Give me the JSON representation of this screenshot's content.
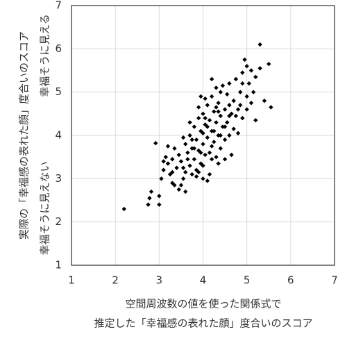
{
  "chart_data": {
    "type": "scatter",
    "xlabel": [
      "空間周波数の値を使った関係式で",
      "推定した「幸福感の表れた顔」度合いのスコア"
    ],
    "ylabel": "実際の「幸福感の表れた顔」度合いのスコア",
    "y_annotation_low": "幸福そうに見えない",
    "y_annotation_high": "幸福そうに見える",
    "xlim": [
      1,
      7
    ],
    "ylim": [
      1,
      7
    ],
    "xticks": [
      1,
      2,
      3,
      4,
      5,
      6,
      7
    ],
    "yticks": [
      1,
      2,
      3,
      4,
      5,
      6,
      7
    ],
    "grid": true,
    "color": "#000000",
    "x": [
      2.2,
      2.75,
      2.78,
      2.82,
      3.0,
      3.0,
      2.92,
      3.05,
      3.1,
      3.15,
      3.2,
      3.25,
      3.3,
      3.35,
      3.4,
      3.45,
      3.5,
      3.5,
      3.55,
      3.6,
      3.6,
      3.65,
      3.7,
      3.7,
      3.75,
      3.75,
      3.8,
      3.8,
      3.85,
      3.85,
      3.9,
      3.9,
      3.95,
      3.95,
      4.0,
      4.0,
      4.0,
      4.05,
      4.05,
      4.1,
      4.1,
      4.1,
      4.15,
      4.15,
      4.2,
      4.2,
      4.2,
      4.25,
      4.25,
      4.3,
      4.3,
      4.3,
      4.35,
      4.35,
      4.4,
      4.4,
      4.4,
      4.45,
      4.5,
      4.5,
      4.55,
      4.55,
      4.6,
      4.6,
      4.65,
      4.7,
      4.7,
      4.75,
      4.8,
      4.8,
      4.85,
      4.9,
      4.9,
      4.95,
      5.0,
      5.0,
      5.05,
      5.1,
      5.15,
      5.2,
      5.2,
      5.3,
      5.3,
      5.4,
      5.5,
      5.55,
      3.35,
      3.45,
      3.6,
      3.85,
      4.0,
      4.15,
      3.3,
      3.55,
      3.7,
      3.9,
      4.05,
      4.2,
      3.95,
      4.45,
      4.3,
      4.6,
      4.75,
      4.85,
      4.65,
      4.5,
      4.35,
      3.2,
      3.1,
      3.3,
      3.55,
      3.65,
      3.8,
      4.0,
      4.1,
      4.25,
      4.35,
      4.5,
      4.6,
      4.05,
      3.95,
      3.75,
      3.9,
      4.2,
      4.4,
      5.0,
      4.9,
      5.1
    ],
    "values": [
      2.3,
      2.4,
      2.55,
      2.7,
      2.4,
      2.6,
      3.82,
      3.0,
      3.2,
      3.5,
      3.35,
      3.1,
      2.9,
      3.7,
      3.25,
      3.55,
      3.4,
      2.85,
      3.0,
      3.8,
      3.15,
      3.6,
      3.3,
      4.0,
      3.1,
      3.7,
      3.45,
      4.2,
      3.9,
      3.2,
      4.4,
      3.65,
      3.35,
      4.1,
      3.8,
      4.5,
      3.0,
      4.25,
      3.55,
      4.7,
      3.95,
      2.95,
      4.35,
      3.6,
      4.9,
      4.1,
      3.45,
      4.55,
      3.85,
      4.3,
      5.1,
      3.5,
      4.75,
      4.0,
      4.45,
      5.0,
      3.7,
      4.2,
      4.6,
      3.9,
      4.95,
      4.3,
      5.2,
      4.0,
      4.5,
      4.8,
      4.15,
      5.3,
      4.6,
      4.05,
      5.0,
      5.45,
      4.4,
      5.75,
      5.6,
      4.9,
      5.2,
      5.5,
      5.0,
      4.35,
      5.35,
      6.1,
      5.55,
      4.8,
      5.65,
      4.65,
      2.85,
      2.75,
      2.7,
      3.05,
      3.3,
      3.1,
      3.45,
      3.95,
      4.3,
      4.65,
      4.85,
      5.3,
      4.9,
      5.15,
      4.65,
      4.7,
      4.45,
      4.7,
      3.55,
      3.45,
      3.35,
      3.75,
      3.4,
      3.15,
      3.25,
      3.45,
      3.7,
      4.05,
      4.2,
      4.1,
      4.55,
      4.2,
      4.45,
      4.4,
      3.6,
      3.9,
      3.15,
      3.75,
      4.0,
      4.6,
      5.2,
      4.75
    ]
  }
}
